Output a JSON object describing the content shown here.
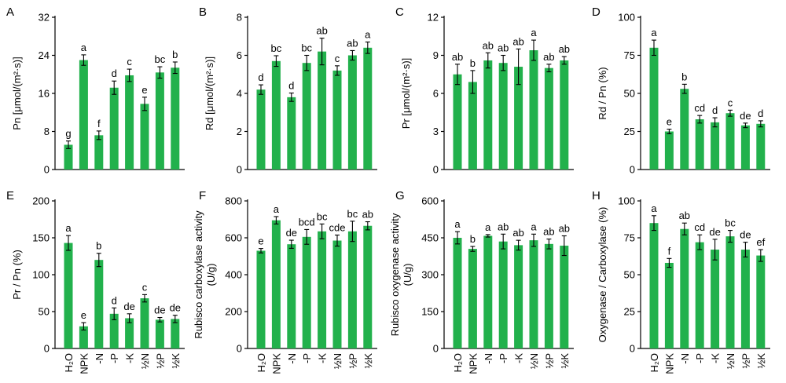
{
  "colors": {
    "bar": "#22b14c",
    "axis": "#000000",
    "text": "#000000"
  },
  "categories": [
    "H₂O",
    "NPK",
    "-N",
    "-P",
    "-K",
    "½N",
    "½P",
    "½K"
  ],
  "chart_data": [
    {
      "panel": "A",
      "type": "bar",
      "ylabel": "Pn [μmol/(m²·s)]",
      "ylim": [
        0,
        32
      ],
      "yticks": [
        "0",
        "8",
        "16",
        "24",
        "32"
      ],
      "show_xticks": false,
      "values": [
        5.2,
        23.0,
        7.2,
        17.2,
        19.8,
        13.8,
        20.4,
        21.4
      ],
      "errors": [
        0.8,
        1.1,
        0.9,
        1.4,
        1.3,
        1.4,
        1.2,
        1.2
      ],
      "labels": [
        "g",
        "a",
        "f",
        "d",
        "c",
        "e",
        "bc",
        "b"
      ]
    },
    {
      "panel": "B",
      "type": "bar",
      "ylabel": "Rd [μmol/(m²·s)]",
      "ylim": [
        0,
        8
      ],
      "yticks": [
        "0",
        "2",
        "4",
        "6",
        "8"
      ],
      "show_xticks": false,
      "values": [
        4.2,
        5.7,
        3.8,
        5.6,
        6.2,
        5.2,
        6.0,
        6.4
      ],
      "errors": [
        0.25,
        0.28,
        0.22,
        0.4,
        0.7,
        0.25,
        0.25,
        0.3
      ],
      "labels": [
        "d",
        "bc",
        "d",
        "bc",
        "ab",
        "c",
        "ab",
        "a"
      ]
    },
    {
      "panel": "C",
      "type": "bar",
      "ylabel": "Pr [μmol/(m²·s)]",
      "ylim": [
        0,
        12
      ],
      "yticks": [
        "0",
        "3",
        "6",
        "9",
        "12"
      ],
      "show_xticks": false,
      "values": [
        7.5,
        6.9,
        8.6,
        8.4,
        8.1,
        9.4,
        8.0,
        8.6
      ],
      "errors": [
        0.8,
        0.9,
        0.6,
        0.6,
        1.4,
        0.8,
        0.3,
        0.3
      ],
      "labels": [
        "ab",
        "b",
        "ab",
        "ab",
        "ab",
        "a",
        "ab",
        "ab"
      ]
    },
    {
      "panel": "D",
      "type": "bar",
      "ylabel": "Rd / Pn (%)",
      "ylim": [
        0,
        100
      ],
      "yticks": [
        "0",
        "25",
        "50",
        "75",
        "100"
      ],
      "show_xticks": false,
      "values": [
        80,
        25,
        53,
        33,
        31,
        37,
        29,
        30
      ],
      "errors": [
        5,
        1.5,
        3,
        2.5,
        3,
        2,
        1.5,
        2
      ],
      "labels": [
        "a",
        "e",
        "b",
        "cd",
        "d",
        "c",
        "de",
        "d"
      ]
    },
    {
      "panel": "E",
      "type": "bar",
      "ylabel": "Pr / Pn (%)",
      "ylim": [
        0,
        200
      ],
      "yticks": [
        "0",
        "50",
        "100",
        "150",
        "200"
      ],
      "show_xticks": true,
      "values": [
        143,
        30,
        120,
        47,
        41,
        68,
        39,
        40
      ],
      "errors": [
        10,
        5,
        9,
        8,
        6,
        5,
        3,
        5
      ],
      "labels": [
        "a",
        "e",
        "b",
        "d",
        "de",
        "c",
        "de",
        "de"
      ]
    },
    {
      "panel": "F",
      "type": "bar",
      "ylabel": "Rubisco carboxylase activity\n(U/g)",
      "ylim": [
        0,
        800
      ],
      "yticks": [
        "0",
        "200",
        "400",
        "600",
        "800"
      ],
      "show_xticks": true,
      "values": [
        530,
        695,
        565,
        605,
        635,
        585,
        635,
        665
      ],
      "errors": [
        12,
        20,
        22,
        40,
        40,
        30,
        55,
        22
      ],
      "labels": [
        "e",
        "a",
        "de",
        "bcd",
        "bc",
        "cde",
        "bc",
        "ab"
      ]
    },
    {
      "panel": "G",
      "type": "bar",
      "ylabel": "Rubisco oxygenase activity\n(U/g)",
      "ylim": [
        0,
        600
      ],
      "yticks": [
        "0",
        "150",
        "300",
        "450",
        "600"
      ],
      "show_xticks": true,
      "values": [
        450,
        405,
        458,
        435,
        420,
        440,
        425,
        418
      ],
      "errors": [
        25,
        10,
        5,
        30,
        20,
        25,
        20,
        40
      ],
      "labels": [
        "a",
        "b",
        "a",
        "ab",
        "ab",
        "a",
        "ab",
        "ab"
      ]
    },
    {
      "panel": "H",
      "type": "bar",
      "ylabel": "Oxygenase / Carboxylase (%)",
      "ylim": [
        0,
        100
      ],
      "yticks": [
        "0",
        "25",
        "50",
        "75",
        "100"
      ],
      "show_xticks": true,
      "values": [
        85,
        58,
        81,
        72,
        67,
        76,
        67,
        63
      ],
      "errors": [
        5,
        3,
        4,
        5,
        7,
        4,
        5,
        4
      ],
      "labels": [
        "a",
        "f",
        "ab",
        "cd",
        "de",
        "bc",
        "de",
        "ef"
      ]
    }
  ]
}
